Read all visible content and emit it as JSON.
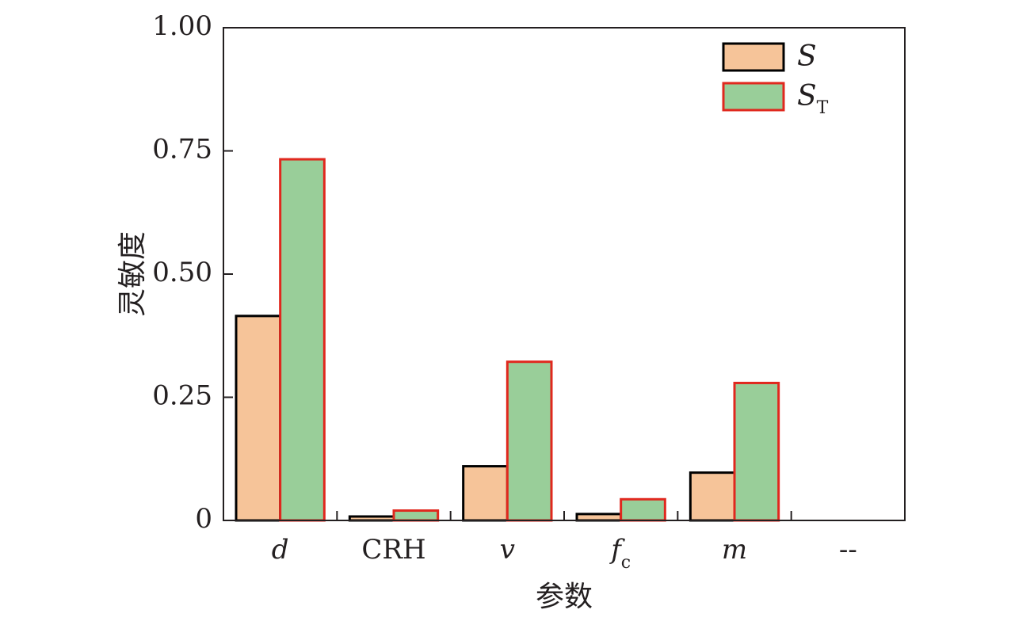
{
  "chart_data": {
    "type": "bar",
    "categories": [
      {
        "main": "d",
        "sub": "",
        "italic": true
      },
      {
        "main": "CRH",
        "sub": "",
        "italic": false
      },
      {
        "main": "v",
        "sub": "",
        "italic": true
      },
      {
        "main": "f",
        "sub": "c",
        "italic": true
      },
      {
        "main": "m",
        "sub": "",
        "italic": true
      },
      {
        "main": "--",
        "sub": "",
        "italic": false
      }
    ],
    "series": [
      {
        "name": "S",
        "name_sub": "",
        "values": [
          0.415,
          0.008,
          0.11,
          0.013,
          0.097,
          0
        ],
        "fill": "#f6c499",
        "stroke": "#000000"
      },
      {
        "name": "S",
        "name_sub": "T",
        "values": [
          0.733,
          0.02,
          0.322,
          0.043,
          0.279,
          0
        ],
        "fill": "#99ce99",
        "stroke": "#e0281e"
      }
    ],
    "ylim": [
      0,
      1.0
    ],
    "yticks": [
      0,
      0.25,
      0.5,
      0.75,
      1.0
    ],
    "ytick_labels": [
      "0",
      "0.25",
      "0.50",
      "0.75",
      "1.00"
    ],
    "ylabel": "灵敏度",
    "xlabel": "参数",
    "title": "",
    "grid": false,
    "legend_position": "top-right"
  }
}
